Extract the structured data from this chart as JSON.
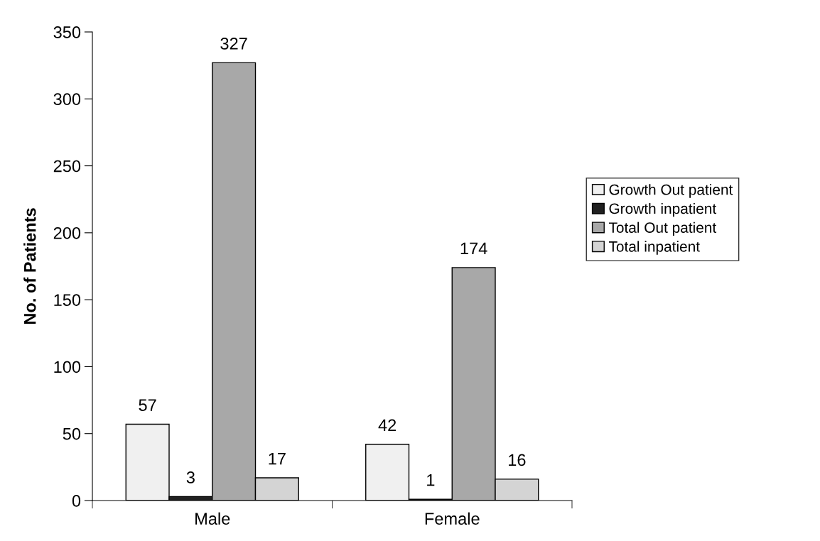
{
  "chart_data": {
    "type": "bar",
    "ylabel": "No. of Patients",
    "categories": [
      "Male",
      "Female"
    ],
    "series": [
      {
        "name": "Growth Out patient",
        "color": "#f0f0f0",
        "values": [
          57,
          42
        ]
      },
      {
        "name": "Growth inpatient",
        "color": "#202020",
        "values": [
          3,
          1
        ]
      },
      {
        "name": "Total Out patient",
        "color": "#a8a8a8",
        "values": [
          327,
          174
        ]
      },
      {
        "name": "Total inpatient",
        "color": "#d4d4d4",
        "values": [
          17,
          16
        ]
      }
    ],
    "ylim": [
      0,
      350
    ],
    "yticks": [
      0,
      50,
      100,
      150,
      200,
      250,
      300,
      350
    ],
    "grid": false,
    "legend": "right",
    "data_labels": true
  }
}
